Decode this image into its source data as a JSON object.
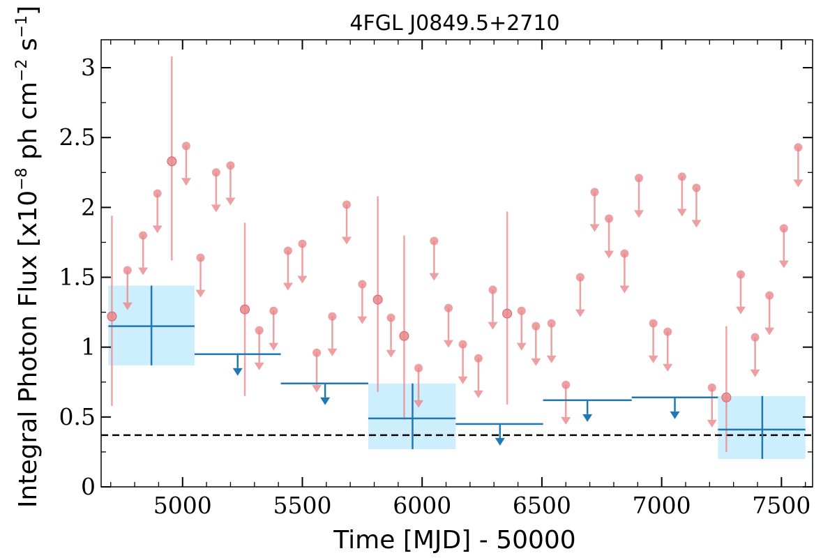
{
  "chart_data": {
    "type": "scatter",
    "title": "4FGL J0849.5+2710",
    "xlabel": "Time [MJD] - 50000",
    "ylabel": "Integral Photon Flux [x10",
    "ylabel_exp1": "−8",
    "ylabel_mid": " ph cm",
    "ylabel_exp2": "−2",
    "ylabel_mid2": " s",
    "ylabel_exp3": "−1",
    "ylabel_end": "]",
    "xlim": [
      4660,
      7630
    ],
    "ylim": [
      0,
      3.2
    ],
    "xticks": [
      {
        "value": 5000,
        "label": "5000"
      },
      {
        "value": 5500,
        "label": "5500"
      },
      {
        "value": 6000,
        "label": "6000"
      },
      {
        "value": 6500,
        "label": "6500"
      },
      {
        "value": 7000,
        "label": "7000"
      },
      {
        "value": 7500,
        "label": "7500"
      }
    ],
    "yticks": [
      {
        "value": 0,
        "label": "0"
      },
      {
        "value": 0.5,
        "label": "0.5"
      },
      {
        "value": 1,
        "label": "1"
      },
      {
        "value": 1.5,
        "label": "1.5"
      },
      {
        "value": 2,
        "label": "2"
      },
      {
        "value": 2.5,
        "label": "2.5"
      },
      {
        "value": 3,
        "label": "3"
      }
    ],
    "reference_line": {
      "y": 0.37,
      "style": "dashed",
      "color": "#000000"
    },
    "colors": {
      "monthly": "#e8878b",
      "yearly": "#1f77b4",
      "band": "#cdeefc"
    },
    "yearly_detections": [
      {
        "x": 4870,
        "xlo": 4690,
        "xhi": 5050,
        "y": 1.15,
        "ylo": 0.87,
        "yhi": 1.44
      },
      {
        "x": 5960,
        "xlo": 5775,
        "xhi": 6140,
        "y": 0.49,
        "ylo": 0.27,
        "yhi": 0.74
      },
      {
        "x": 7420,
        "xlo": 7235,
        "xhi": 7600,
        "y": 0.41,
        "ylo": 0.2,
        "yhi": 0.65
      }
    ],
    "yearly_upper_limits": [
      {
        "x": 5230,
        "xlo": 5050,
        "xhi": 5410,
        "y": 0.95
      },
      {
        "x": 5595,
        "xlo": 5410,
        "xhi": 5775,
        "y": 0.74
      },
      {
        "x": 6325,
        "xlo": 6140,
        "xhi": 6505,
        "y": 0.45
      },
      {
        "x": 6690,
        "xlo": 6505,
        "xhi": 6875,
        "y": 0.62
      },
      {
        "x": 7055,
        "xlo": 6875,
        "xhi": 7235,
        "y": 0.64
      }
    ],
    "monthly_detections": [
      {
        "x": 4705,
        "y": 1.22,
        "ylo": 0.58,
        "yhi": 1.94
      },
      {
        "x": 4955,
        "y": 2.33,
        "ylo": 1.62,
        "yhi": 3.08
      },
      {
        "x": 5260,
        "y": 1.27,
        "ylo": 0.65,
        "yhi": 1.89
      },
      {
        "x": 5815,
        "y": 1.34,
        "ylo": 0.68,
        "yhi": 2.08
      },
      {
        "x": 5925,
        "y": 1.08,
        "ylo": 0.48,
        "yhi": 1.8
      },
      {
        "x": 6355,
        "y": 1.24,
        "ylo": 0.59,
        "yhi": 1.97
      },
      {
        "x": 7270,
        "y": 0.64,
        "ylo": 0.25,
        "yhi": 1.15
      }
    ],
    "monthly_upper_limits": [
      {
        "x": 4770,
        "y": 1.55
      },
      {
        "x": 4835,
        "y": 1.8
      },
      {
        "x": 4895,
        "y": 2.1
      },
      {
        "x": 5015,
        "y": 2.44
      },
      {
        "x": 5075,
        "y": 1.64
      },
      {
        "x": 5140,
        "y": 2.25
      },
      {
        "x": 5200,
        "y": 2.3
      },
      {
        "x": 5320,
        "y": 1.12
      },
      {
        "x": 5380,
        "y": 1.26
      },
      {
        "x": 5440,
        "y": 1.69
      },
      {
        "x": 5500,
        "y": 1.74
      },
      {
        "x": 5560,
        "y": 0.96
      },
      {
        "x": 5625,
        "y": 1.22
      },
      {
        "x": 5685,
        "y": 2.02
      },
      {
        "x": 5750,
        "y": 1.45
      },
      {
        "x": 5870,
        "y": 1.21
      },
      {
        "x": 5985,
        "y": 0.85
      },
      {
        "x": 6050,
        "y": 1.76
      },
      {
        "x": 6110,
        "y": 1.28
      },
      {
        "x": 6170,
        "y": 1.02
      },
      {
        "x": 6235,
        "y": 0.92
      },
      {
        "x": 6295,
        "y": 1.41
      },
      {
        "x": 6415,
        "y": 1.26
      },
      {
        "x": 6475,
        "y": 1.15
      },
      {
        "x": 6540,
        "y": 1.17
      },
      {
        "x": 6600,
        "y": 0.73
      },
      {
        "x": 6660,
        "y": 1.5
      },
      {
        "x": 6720,
        "y": 2.11
      },
      {
        "x": 6780,
        "y": 1.92
      },
      {
        "x": 6845,
        "y": 1.67
      },
      {
        "x": 6905,
        "y": 2.21
      },
      {
        "x": 6965,
        "y": 1.17
      },
      {
        "x": 7025,
        "y": 1.11
      },
      {
        "x": 7085,
        "y": 2.22
      },
      {
        "x": 7145,
        "y": 2.14
      },
      {
        "x": 7210,
        "y": 0.71
      },
      {
        "x": 7330,
        "y": 1.52
      },
      {
        "x": 7390,
        "y": 1.07
      },
      {
        "x": 7450,
        "y": 1.37
      },
      {
        "x": 7510,
        "y": 1.85
      },
      {
        "x": 7570,
        "y": 2.43
      }
    ]
  }
}
